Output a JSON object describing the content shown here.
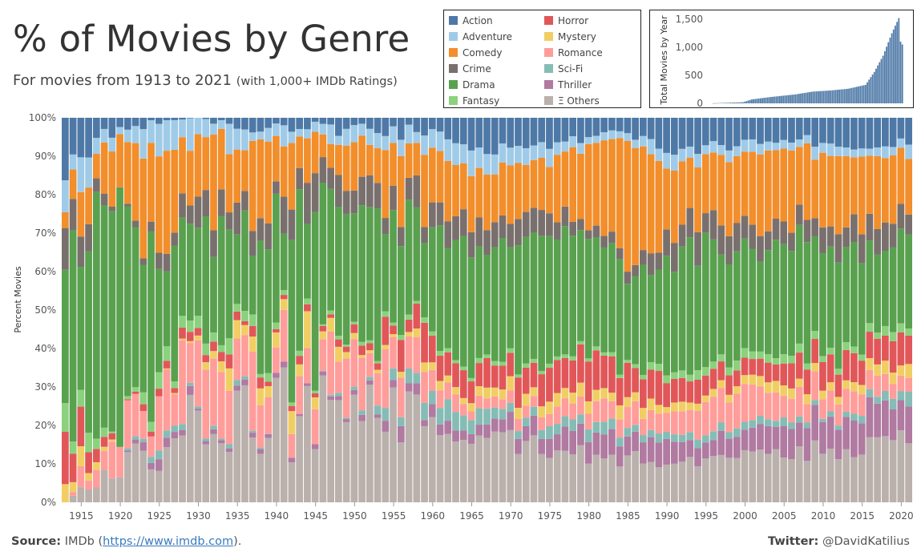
{
  "title": "% of Movies by Genre",
  "subtitle_main": "For movies from 1913 to 2021",
  "subtitle_note": "(with 1,000+ IMDb Ratings)",
  "footer": {
    "source_label": "Source:",
    "source_text": "IMDb (",
    "source_link": "https://www.imdb.com",
    "source_end": ").",
    "twitter_label": "Twitter:",
    "twitter_handle": "@DavidKatilius"
  },
  "legend": [
    {
      "name": "Action",
      "color": "#4e79a7"
    },
    {
      "name": "Horror",
      "color": "#e15759"
    },
    {
      "name": "Adventure",
      "color": "#a0cbe8"
    },
    {
      "name": "Mystery",
      "color": "#f1ce63"
    },
    {
      "name": "Comedy",
      "color": "#f28e2b"
    },
    {
      "name": "Romance",
      "color": "#ff9d9a"
    },
    {
      "name": "Crime",
      "color": "#79706e"
    },
    {
      "name": "Sci-Fi",
      "color": "#86bcb6"
    },
    {
      "name": "Drama",
      "color": "#59a14f"
    },
    {
      "name": "Thriller",
      "color": "#b07aa1"
    },
    {
      "name": "Fantasy",
      "color": "#8cd17d"
    },
    {
      "name": "Ξ Others",
      "color": "#bab0ac"
    }
  ],
  "chart_data": [
    {
      "type": "bar",
      "stacked": true,
      "ylabel": "Percent Movies",
      "xlabel": "",
      "ylim": [
        0,
        100
      ],
      "y_ticks": [
        "0%",
        "10%",
        "20%",
        "30%",
        "40%",
        "50%",
        "60%",
        "70%",
        "80%",
        "90%",
        "100%"
      ],
      "x_ticks": [
        "1915",
        "1920",
        "1925",
        "1930",
        "1935",
        "1940",
        "1945",
        "1950",
        "1955",
        "1960",
        "1965",
        "1970",
        "1975",
        "1980",
        "1985",
        "1990",
        "1995",
        "2000",
        "2005",
        "2010",
        "2015",
        "2020"
      ],
      "grid": false,
      "series_order_bottom_to_top": [
        "Ξ Others",
        "Thriller",
        "Sci-Fi",
        "Romance",
        "Mystery",
        "Horror",
        "Fantasy",
        "Drama",
        "Crime",
        "Comedy",
        "Adventure",
        "Action"
      ],
      "anchors": [
        {
          "year": 1913,
          "values": [
            0,
            0,
            0,
            0,
            4,
            9,
            7,
            44,
            9,
            7,
            6,
            14
          ]
        },
        {
          "year": 1920,
          "values": [
            10,
            0,
            0,
            10,
            0,
            0,
            0,
            60,
            0,
            14,
            3,
            3
          ]
        },
        {
          "year": 1925,
          "values": [
            12,
            2,
            2,
            12,
            0,
            2,
            3,
            38,
            3,
            19,
            6,
            1
          ]
        },
        {
          "year": 1930,
          "values": [
            18,
            1,
            1,
            16,
            1,
            2,
            3,
            35,
            7,
            12,
            4,
            0
          ]
        },
        {
          "year": 1935,
          "values": [
            21,
            1,
            1,
            13,
            4,
            2,
            2,
            27,
            6,
            17,
            4,
            2
          ]
        },
        {
          "year": 1940,
          "values": [
            22,
            1,
            0,
            12,
            4,
            2,
            2,
            27,
            6,
            17,
            4,
            3
          ]
        },
        {
          "year": 1945,
          "values": [
            25,
            1,
            0,
            13,
            6,
            2,
            1,
            32,
            7,
            8,
            3,
            2
          ]
        },
        {
          "year": 1950,
          "values": [
            27,
            1,
            1,
            12,
            1,
            2,
            1,
            32,
            5,
            11,
            4,
            3
          ]
        },
        {
          "year": 1955,
          "values": [
            25,
            2,
            3,
            9,
            1,
            5,
            1,
            29,
            7,
            11,
            4,
            3
          ]
        },
        {
          "year": 1960,
          "values": [
            19,
            3,
            4,
            6,
            2,
            7,
            1,
            32,
            6,
            13,
            4,
            3
          ]
        },
        {
          "year": 1965,
          "values": [
            17,
            3,
            5,
            3,
            2,
            6,
            1,
            28,
            7,
            14,
            6,
            8
          ]
        },
        {
          "year": 1970,
          "values": [
            17,
            4,
            2,
            3,
            3,
            7,
            1,
            30,
            6,
            14,
            4,
            9
          ]
        },
        {
          "year": 1975,
          "values": [
            14,
            5,
            3,
            4,
            3,
            8,
            1,
            32,
            6,
            13,
            4,
            7
          ]
        },
        {
          "year": 1980,
          "values": [
            12,
            6,
            3,
            5,
            3,
            10,
            1,
            29,
            3,
            21,
            2,
            5
          ]
        },
        {
          "year": 1985,
          "values": [
            11,
            6,
            2,
            5,
            3,
            8,
            1,
            25,
            3,
            30,
            2,
            4
          ]
        },
        {
          "year": 1990,
          "values": [
            11,
            6,
            2,
            6,
            2,
            8,
            2,
            28,
            6,
            17,
            4,
            8
          ]
        },
        {
          "year": 1995,
          "values": [
            11,
            5,
            2,
            8,
            2,
            5,
            2,
            32,
            7,
            15,
            3,
            8
          ]
        },
        {
          "year": 2000,
          "values": [
            11,
            6,
            2,
            9,
            2,
            4,
            2,
            30,
            6,
            18,
            3,
            7
          ]
        },
        {
          "year": 2005,
          "values": [
            13,
            7,
            2,
            7,
            3,
            5,
            2,
            29,
            5,
            19,
            2,
            6
          ]
        },
        {
          "year": 2010,
          "values": [
            13,
            8,
            1,
            6,
            2,
            7,
            2,
            28,
            6,
            18,
            3,
            6
          ]
        },
        {
          "year": 2015,
          "values": [
            15,
            8,
            2,
            5,
            3,
            8,
            2,
            23,
            7,
            18,
            2,
            7
          ]
        },
        {
          "year": 2021,
          "values": [
            16,
            9,
            3,
            4,
            3,
            7,
            2,
            25,
            5,
            14,
            3,
            6
          ]
        }
      ]
    },
    {
      "type": "bar",
      "ylabel": "Total Movies by Year",
      "ylim": [
        0,
        1600
      ],
      "y_ticks": [
        "0",
        "500",
        "1,000",
        "1,500"
      ],
      "points": [
        {
          "year": 1913,
          "value": 2
        },
        {
          "year": 1930,
          "value": 20
        },
        {
          "year": 1935,
          "value": 70
        },
        {
          "year": 1945,
          "value": 110
        },
        {
          "year": 1960,
          "value": 160
        },
        {
          "year": 1970,
          "value": 210
        },
        {
          "year": 1980,
          "value": 230
        },
        {
          "year": 1990,
          "value": 260
        },
        {
          "year": 2000,
          "value": 330
        },
        {
          "year": 2005,
          "value": 560
        },
        {
          "year": 2010,
          "value": 850
        },
        {
          "year": 2015,
          "value": 1250
        },
        {
          "year": 2019,
          "value": 1520
        },
        {
          "year": 2020,
          "value": 1100
        },
        {
          "year": 2021,
          "value": 1050
        }
      ]
    }
  ]
}
